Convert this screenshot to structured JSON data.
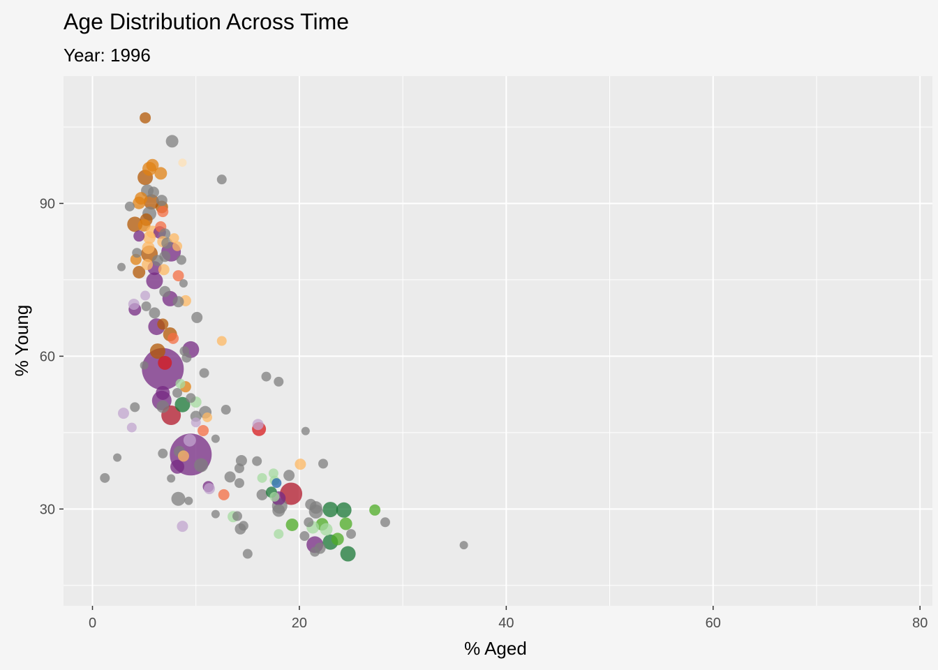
{
  "chart_data": {
    "type": "scatter",
    "title": "Age Distribution Across Time",
    "subtitle": "Year: 1996",
    "xlabel": "% Aged",
    "ylabel": "% Young",
    "xlim": [
      -2.8,
      81.2
    ],
    "ylim": [
      11,
      115
    ],
    "xticks": [
      0,
      20,
      40,
      60,
      80
    ],
    "yticks": [
      30,
      60,
      90
    ],
    "xminor": [
      10,
      30,
      50,
      70
    ],
    "yminor": [
      15,
      45,
      75,
      105
    ],
    "grid": true,
    "legend": "none",
    "colors": {
      "grey": "#7f7f7f",
      "darkorange": "#b35806",
      "orange": "#e08214",
      "lightorange": "#fdb863",
      "peach": "#fee0b6",
      "salmon": "#f46d43",
      "red": "#d7191c",
      "crimson": "#b2182b",
      "purple": "#762a83",
      "lightpurple": "#c2a5cf",
      "darkgreen": "#1b7837",
      "green": "#4dac26",
      "lightgreen": "#a6dba0",
      "blue": "#2166ac"
    },
    "points": [
      {
        "x": 5.1,
        "y": 106.8,
        "s": 8,
        "c": "darkorange"
      },
      {
        "x": 7.7,
        "y": 102.2,
        "s": 9,
        "c": "grey"
      },
      {
        "x": 8.7,
        "y": 98.0,
        "s": 6,
        "c": "peach"
      },
      {
        "x": 5.8,
        "y": 97.5,
        "s": 9,
        "c": "orange"
      },
      {
        "x": 5.5,
        "y": 96.8,
        "s": 10,
        "c": "orange"
      },
      {
        "x": 6.6,
        "y": 95.9,
        "s": 9,
        "c": "orange"
      },
      {
        "x": 5.1,
        "y": 95.1,
        "s": 11,
        "c": "darkorange"
      },
      {
        "x": 12.5,
        "y": 94.7,
        "s": 7,
        "c": "grey"
      },
      {
        "x": 5.3,
        "y": 92.5,
        "s": 9,
        "c": "grey"
      },
      {
        "x": 5.9,
        "y": 92.2,
        "s": 8,
        "c": "grey"
      },
      {
        "x": 4.7,
        "y": 91.0,
        "s": 9,
        "c": "orange"
      },
      {
        "x": 6.7,
        "y": 90.6,
        "s": 8,
        "c": "grey"
      },
      {
        "x": 5.7,
        "y": 90.3,
        "s": 11,
        "c": "darkorange"
      },
      {
        "x": 4.5,
        "y": 90.1,
        "s": 9,
        "c": "orange"
      },
      {
        "x": 3.6,
        "y": 89.4,
        "s": 7,
        "c": "grey"
      },
      {
        "x": 6.7,
        "y": 89.3,
        "s": 9,
        "c": "darkorange"
      },
      {
        "x": 6.8,
        "y": 88.4,
        "s": 8,
        "c": "salmon"
      },
      {
        "x": 5.5,
        "y": 88.0,
        "s": 10,
        "c": "grey"
      },
      {
        "x": 5.2,
        "y": 86.8,
        "s": 9,
        "c": "darkorange"
      },
      {
        "x": 4.1,
        "y": 85.9,
        "s": 11,
        "c": "darkorange"
      },
      {
        "x": 5.0,
        "y": 85.7,
        "s": 9,
        "c": "orange"
      },
      {
        "x": 6.6,
        "y": 85.4,
        "s": 8,
        "c": "salmon"
      },
      {
        "x": 5.8,
        "y": 84.4,
        "s": 9,
        "c": "lightorange"
      },
      {
        "x": 6.5,
        "y": 84.3,
        "s": 9,
        "c": "purple"
      },
      {
        "x": 7.0,
        "y": 84.0,
        "s": 8,
        "c": "grey"
      },
      {
        "x": 4.5,
        "y": 83.6,
        "s": 8,
        "c": "purple"
      },
      {
        "x": 5.5,
        "y": 83.3,
        "s": 9,
        "c": "lightorange"
      },
      {
        "x": 7.9,
        "y": 83.2,
        "s": 7,
        "c": "lightorange"
      },
      {
        "x": 6.8,
        "y": 82.5,
        "s": 8,
        "c": "lightorange"
      },
      {
        "x": 7.2,
        "y": 82.2,
        "s": 8,
        "c": "grey"
      },
      {
        "x": 8.2,
        "y": 81.6,
        "s": 7,
        "c": "lightorange"
      },
      {
        "x": 5.4,
        "y": 81.3,
        "s": 9,
        "c": "lightorange"
      },
      {
        "x": 7.6,
        "y": 80.5,
        "s": 14,
        "c": "purple"
      },
      {
        "x": 5.5,
        "y": 80.1,
        "s": 12,
        "c": "darkorange"
      },
      {
        "x": 4.3,
        "y": 80.3,
        "s": 7,
        "c": "grey"
      },
      {
        "x": 7.0,
        "y": 79.6,
        "s": 8,
        "c": "grey"
      },
      {
        "x": 4.2,
        "y": 79.0,
        "s": 8,
        "c": "orange"
      },
      {
        "x": 6.3,
        "y": 78.8,
        "s": 8,
        "c": "grey"
      },
      {
        "x": 8.6,
        "y": 78.9,
        "s": 7,
        "c": "grey"
      },
      {
        "x": 5.3,
        "y": 78.0,
        "s": 8,
        "c": "lightorange"
      },
      {
        "x": 2.8,
        "y": 77.5,
        "s": 6,
        "c": "grey"
      },
      {
        "x": 6.0,
        "y": 77.3,
        "s": 10,
        "c": "purple"
      },
      {
        "x": 6.9,
        "y": 77.0,
        "s": 8,
        "c": "lightorange"
      },
      {
        "x": 4.5,
        "y": 76.5,
        "s": 9,
        "c": "darkorange"
      },
      {
        "x": 8.3,
        "y": 75.8,
        "s": 8,
        "c": "salmon"
      },
      {
        "x": 6.0,
        "y": 74.8,
        "s": 12,
        "c": "purple"
      },
      {
        "x": 8.8,
        "y": 74.3,
        "s": 6,
        "c": "grey"
      },
      {
        "x": 7.0,
        "y": 72.7,
        "s": 8,
        "c": "grey"
      },
      {
        "x": 5.1,
        "y": 71.9,
        "s": 7,
        "c": "lightpurple"
      },
      {
        "x": 7.5,
        "y": 71.3,
        "s": 11,
        "c": "purple"
      },
      {
        "x": 9.0,
        "y": 70.9,
        "s": 8,
        "c": "lightorange"
      },
      {
        "x": 8.3,
        "y": 70.7,
        "s": 8,
        "c": "grey"
      },
      {
        "x": 4.0,
        "y": 70.2,
        "s": 8,
        "c": "lightpurple"
      },
      {
        "x": 5.2,
        "y": 69.8,
        "s": 7,
        "c": "grey"
      },
      {
        "x": 4.1,
        "y": 69.2,
        "s": 9,
        "c": "purple"
      },
      {
        "x": 6.0,
        "y": 68.5,
        "s": 8,
        "c": "grey"
      },
      {
        "x": 10.1,
        "y": 67.6,
        "s": 8,
        "c": "grey"
      },
      {
        "x": 6.8,
        "y": 66.3,
        "s": 8,
        "c": "darkorange"
      },
      {
        "x": 6.2,
        "y": 65.8,
        "s": 12,
        "c": "purple"
      },
      {
        "x": 7.5,
        "y": 64.3,
        "s": 10,
        "c": "darkorange"
      },
      {
        "x": 7.8,
        "y": 63.5,
        "s": 8,
        "c": "salmon"
      },
      {
        "x": 12.5,
        "y": 63.0,
        "s": 7,
        "c": "lightorange"
      },
      {
        "x": 6.3,
        "y": 61.0,
        "s": 11,
        "c": "darkorange"
      },
      {
        "x": 9.5,
        "y": 61.3,
        "s": 12,
        "c": "purple"
      },
      {
        "x": 8.9,
        "y": 61.0,
        "s": 7,
        "c": "grey"
      },
      {
        "x": 9.1,
        "y": 59.7,
        "s": 7,
        "c": "grey"
      },
      {
        "x": 5.0,
        "y": 58.2,
        "s": 6,
        "c": "grey"
      },
      {
        "x": 6.8,
        "y": 57.5,
        "s": 30,
        "c": "purple"
      },
      {
        "x": 7.0,
        "y": 58.7,
        "s": 10,
        "c": "red"
      },
      {
        "x": 10.8,
        "y": 56.7,
        "s": 7,
        "c": "grey"
      },
      {
        "x": 16.8,
        "y": 56.0,
        "s": 7,
        "c": "grey"
      },
      {
        "x": 18.0,
        "y": 55.0,
        "s": 7,
        "c": "grey"
      },
      {
        "x": 8.5,
        "y": 54.6,
        "s": 7,
        "c": "lightgreen"
      },
      {
        "x": 9.0,
        "y": 54.0,
        "s": 8,
        "c": "orange"
      },
      {
        "x": 6.8,
        "y": 52.8,
        "s": 10,
        "c": "purple"
      },
      {
        "x": 8.2,
        "y": 52.8,
        "s": 7,
        "c": "grey"
      },
      {
        "x": 9.5,
        "y": 51.8,
        "s": 7,
        "c": "grey"
      },
      {
        "x": 6.7,
        "y": 51.3,
        "s": 14,
        "c": "purple"
      },
      {
        "x": 10.0,
        "y": 51.0,
        "s": 8,
        "c": "lightgreen"
      },
      {
        "x": 8.7,
        "y": 50.5,
        "s": 11,
        "c": "darkgreen"
      },
      {
        "x": 6.8,
        "y": 50.1,
        "s": 9,
        "c": "grey"
      },
      {
        "x": 4.1,
        "y": 50.0,
        "s": 7,
        "c": "grey"
      },
      {
        "x": 12.9,
        "y": 49.5,
        "s": 7,
        "c": "grey"
      },
      {
        "x": 10.9,
        "y": 49.0,
        "s": 9,
        "c": "grey"
      },
      {
        "x": 3.0,
        "y": 48.8,
        "s": 8,
        "c": "lightpurple"
      },
      {
        "x": 7.6,
        "y": 48.4,
        "s": 14,
        "c": "crimson"
      },
      {
        "x": 10.0,
        "y": 48.2,
        "s": 8,
        "c": "grey"
      },
      {
        "x": 11.1,
        "y": 48.0,
        "s": 7,
        "c": "lightorange"
      },
      {
        "x": 10.0,
        "y": 47.0,
        "s": 7,
        "c": "lightpurple"
      },
      {
        "x": 16.0,
        "y": 46.6,
        "s": 8,
        "c": "lightpurple"
      },
      {
        "x": 3.8,
        "y": 46.0,
        "s": 7,
        "c": "lightpurple"
      },
      {
        "x": 16.1,
        "y": 45.7,
        "s": 10,
        "c": "red"
      },
      {
        "x": 10.7,
        "y": 45.4,
        "s": 8,
        "c": "salmon"
      },
      {
        "x": 20.6,
        "y": 45.3,
        "s": 6,
        "c": "grey"
      },
      {
        "x": 11.9,
        "y": 43.8,
        "s": 6,
        "c": "grey"
      },
      {
        "x": 9.4,
        "y": 43.5,
        "s": 9,
        "c": "lightpurple"
      },
      {
        "x": 9.5,
        "y": 40.7,
        "s": 30,
        "c": "purple"
      },
      {
        "x": 8.4,
        "y": 41.3,
        "s": 8,
        "c": "grey"
      },
      {
        "x": 6.8,
        "y": 40.9,
        "s": 7,
        "c": "grey"
      },
      {
        "x": 8.8,
        "y": 40.4,
        "s": 8,
        "c": "lightorange"
      },
      {
        "x": 2.4,
        "y": 40.1,
        "s": 6,
        "c": "grey"
      },
      {
        "x": 14.4,
        "y": 39.5,
        "s": 8,
        "c": "grey"
      },
      {
        "x": 15.9,
        "y": 39.4,
        "s": 7,
        "c": "grey"
      },
      {
        "x": 20.1,
        "y": 38.8,
        "s": 8,
        "c": "lightorange"
      },
      {
        "x": 22.3,
        "y": 38.9,
        "s": 7,
        "c": "grey"
      },
      {
        "x": 10.5,
        "y": 38.6,
        "s": 10,
        "c": "grey"
      },
      {
        "x": 8.2,
        "y": 38.3,
        "s": 10,
        "c": "purple"
      },
      {
        "x": 14.2,
        "y": 38.0,
        "s": 7,
        "c": "grey"
      },
      {
        "x": 17.5,
        "y": 37.0,
        "s": 7,
        "c": "lightgreen"
      },
      {
        "x": 1.2,
        "y": 36.1,
        "s": 7,
        "c": "grey"
      },
      {
        "x": 7.6,
        "y": 36.0,
        "s": 6,
        "c": "grey"
      },
      {
        "x": 13.3,
        "y": 36.3,
        "s": 8,
        "c": "grey"
      },
      {
        "x": 16.4,
        "y": 36.1,
        "s": 7,
        "c": "lightgreen"
      },
      {
        "x": 19.0,
        "y": 36.6,
        "s": 8,
        "c": "grey"
      },
      {
        "x": 17.6,
        "y": 35.6,
        "s": 7,
        "c": "lightgreen"
      },
      {
        "x": 17.8,
        "y": 35.1,
        "s": 7,
        "c": "blue"
      },
      {
        "x": 14.2,
        "y": 35.1,
        "s": 7,
        "c": "grey"
      },
      {
        "x": 11.2,
        "y": 34.4,
        "s": 8,
        "c": "purple"
      },
      {
        "x": 11.3,
        "y": 34.0,
        "s": 8,
        "c": "lightpurple"
      },
      {
        "x": 19.2,
        "y": 33.0,
        "s": 16,
        "c": "crimson"
      },
      {
        "x": 12.7,
        "y": 32.8,
        "s": 8,
        "c": "salmon"
      },
      {
        "x": 16.4,
        "y": 32.8,
        "s": 8,
        "c": "grey"
      },
      {
        "x": 17.3,
        "y": 33.3,
        "s": 8,
        "c": "darkgreen"
      },
      {
        "x": 18.0,
        "y": 32.1,
        "s": 10,
        "c": "purple"
      },
      {
        "x": 17.6,
        "y": 32.4,
        "s": 7,
        "c": "lightgreen"
      },
      {
        "x": 8.3,
        "y": 32.0,
        "s": 10,
        "c": "grey"
      },
      {
        "x": 9.3,
        "y": 31.6,
        "s": 6,
        "c": "grey"
      },
      {
        "x": 21.1,
        "y": 30.9,
        "s": 8,
        "c": "grey"
      },
      {
        "x": 21.6,
        "y": 30.3,
        "s": 9,
        "c": "grey"
      },
      {
        "x": 18.1,
        "y": 30.6,
        "s": 11,
        "c": "grey"
      },
      {
        "x": 23.0,
        "y": 29.9,
        "s": 11,
        "c": "darkgreen"
      },
      {
        "x": 24.3,
        "y": 29.8,
        "s": 11,
        "c": "darkgreen"
      },
      {
        "x": 27.3,
        "y": 29.8,
        "s": 8,
        "c": "green"
      },
      {
        "x": 18.0,
        "y": 29.7,
        "s": 9,
        "c": "grey"
      },
      {
        "x": 21.6,
        "y": 29.5,
        "s": 10,
        "c": "grey"
      },
      {
        "x": 11.9,
        "y": 29.0,
        "s": 6,
        "c": "grey"
      },
      {
        "x": 13.6,
        "y": 28.5,
        "s": 8,
        "c": "lightgreen"
      },
      {
        "x": 14.0,
        "y": 28.6,
        "s": 7,
        "c": "grey"
      },
      {
        "x": 20.9,
        "y": 27.4,
        "s": 7,
        "c": "grey"
      },
      {
        "x": 28.3,
        "y": 27.4,
        "s": 7,
        "c": "grey"
      },
      {
        "x": 19.3,
        "y": 26.9,
        "s": 9,
        "c": "green"
      },
      {
        "x": 22.2,
        "y": 27.0,
        "s": 9,
        "c": "green"
      },
      {
        "x": 24.5,
        "y": 27.1,
        "s": 9,
        "c": "green"
      },
      {
        "x": 8.7,
        "y": 26.6,
        "s": 8,
        "c": "lightpurple"
      },
      {
        "x": 14.6,
        "y": 26.7,
        "s": 7,
        "c": "grey"
      },
      {
        "x": 21.3,
        "y": 26.4,
        "s": 9,
        "c": "lightgreen"
      },
      {
        "x": 14.3,
        "y": 26.1,
        "s": 8,
        "c": "grey"
      },
      {
        "x": 22.6,
        "y": 26.0,
        "s": 9,
        "c": "lightgreen"
      },
      {
        "x": 25.0,
        "y": 25.1,
        "s": 7,
        "c": "grey"
      },
      {
        "x": 18.0,
        "y": 25.1,
        "s": 7,
        "c": "lightgreen"
      },
      {
        "x": 20.5,
        "y": 24.7,
        "s": 7,
        "c": "grey"
      },
      {
        "x": 23.7,
        "y": 24.1,
        "s": 9,
        "c": "green"
      },
      {
        "x": 23.0,
        "y": 23.5,
        "s": 11,
        "c": "darkgreen"
      },
      {
        "x": 21.5,
        "y": 23.0,
        "s": 12,
        "c": "purple"
      },
      {
        "x": 35.9,
        "y": 22.9,
        "s": 6,
        "c": "grey"
      },
      {
        "x": 22.0,
        "y": 22.3,
        "s": 8,
        "c": "grey"
      },
      {
        "x": 21.5,
        "y": 21.6,
        "s": 7,
        "c": "grey"
      },
      {
        "x": 24.7,
        "y": 21.2,
        "s": 11,
        "c": "darkgreen"
      },
      {
        "x": 15.0,
        "y": 21.2,
        "s": 7,
        "c": "grey"
      }
    ]
  }
}
